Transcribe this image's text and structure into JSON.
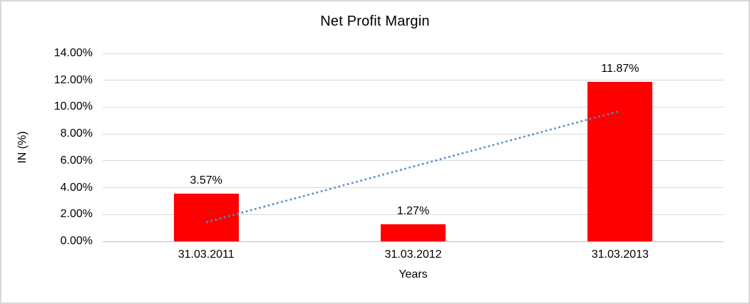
{
  "chart_data": {
    "type": "bar",
    "title": "Net Profit Margin",
    "categories": [
      "31.03.2011",
      "31.03.2012",
      "31.03.2013"
    ],
    "values": [
      3.57,
      1.27,
      11.87
    ],
    "data_labels": [
      "3.57%",
      "1.27%",
      "11.87%"
    ],
    "xlabel": "Years",
    "ylabel": "IN (%)",
    "ylim": [
      0,
      14
    ],
    "ytick_step": 2,
    "ytick_labels": [
      "0.00%",
      "2.00%",
      "4.00%",
      "6.00%",
      "8.00%",
      "10.00%",
      "12.00%",
      "14.00%"
    ],
    "grid": "horizontal",
    "legend": "none",
    "bar_color": "#FF0000",
    "gridline_color": "#D9D9D9",
    "axis_line_color": "#BFBFBF",
    "trendline": {
      "type": "linear",
      "style": "dotted",
      "color": "#4E8BCC",
      "start_value": 1.42,
      "end_value": 9.72
    }
  }
}
